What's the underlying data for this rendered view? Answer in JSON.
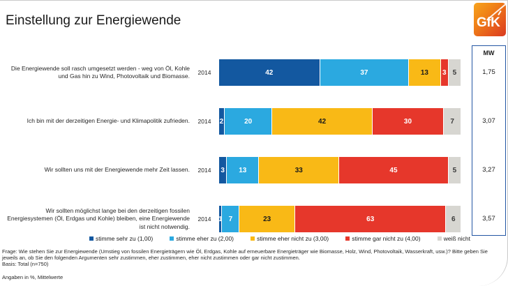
{
  "header": {
    "title": "Einstellung zur Energiewende",
    "logo_text": "GfK"
  },
  "chart_data": {
    "type": "bar",
    "orientation": "horizontal-stacked",
    "unit": "%",
    "title": "Einstellung zur Energiewende",
    "year_label": "2014",
    "categories": [
      "Die Energiewende soll rasch umgesetzt werden - weg von Öl, Kohle und Gas hin zu Wind, Photovoltaik und Biomasse.",
      "Ich bin mit der derzeitigen Energie- und Klimapolitik zufrieden.",
      "Wir sollten uns mit der Energiewende mehr Zeit lassen.",
      "Wir sollten möglichst lange bei den derzeitigen fossilen Energiesystemen (Öl, Erdgas und Kohle) bleiben, eine Energiewende ist nicht notwendig."
    ],
    "series": [
      {
        "name": "stimme sehr zu (1,00)",
        "color": "#1358a0",
        "text_color": "#ffffff",
        "values": [
          42,
          2,
          3,
          1
        ]
      },
      {
        "name": "stimme eher zu (2,00)",
        "color": "#2ba9e0",
        "text_color": "#ffffff",
        "values": [
          37,
          20,
          13,
          7
        ]
      },
      {
        "name": "stimme eher nicht zu (3,00)",
        "color": "#f9b916",
        "text_color": "#1a1a1a",
        "values": [
          13,
          42,
          33,
          23
        ]
      },
      {
        "name": "stimme gar nicht zu (4,00)",
        "color": "#e6372b",
        "text_color": "#ffffff",
        "values": [
          3,
          30,
          45,
          63
        ]
      },
      {
        "name": "weiß nicht",
        "color": "#d7d6d1",
        "text_color": "#3a3a3a",
        "values": [
          5,
          7,
          5,
          6
        ]
      }
    ],
    "mean_header": "MW",
    "means": [
      "1,75",
      "3,07",
      "3,27",
      "3,57"
    ],
    "xlim": [
      0,
      100
    ],
    "grid": false,
    "legend_position": "bottom"
  },
  "footer": {
    "question": "Frage: Wie stehen Sie zur Energiewende (Umstieg von fossilen Energieträgern wie Öl, Erdgas, Kohle auf erneuerbare Energieträger wie Biomasse, Holz, Wind, Photovoltaik, Wasserkraft, usw.)? Bitte geben Sie jeweils an, ob Sie den folgenden Argumenten sehr zustimmen, eher zustimmen, eher nicht zustimmen oder gar nicht zustimmen.",
    "basis": "Basis: Total (n=750)",
    "note": "Angaben in %, Mittelwerte"
  }
}
